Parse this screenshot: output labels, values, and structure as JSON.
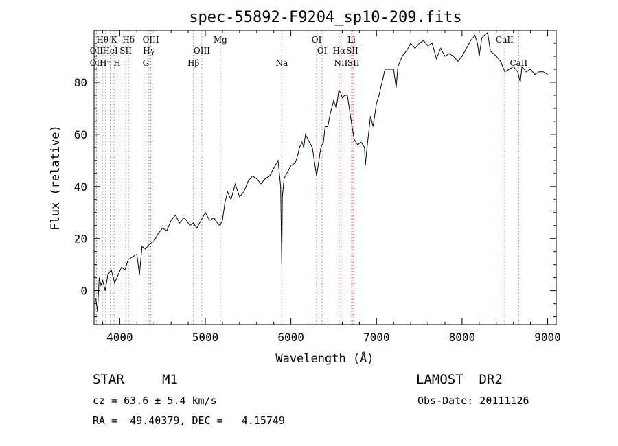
{
  "chart_data": {
    "type": "line",
    "title": "spec-55892-F9204_sp10-209.fits",
    "xlabel": "Wavelength (Å)",
    "ylabel": "Flux (relative)",
    "xlim": [
      3700,
      9100
    ],
    "ylim": [
      -13,
      100
    ],
    "xticks": [
      4000,
      5000,
      6000,
      7000,
      8000,
      9000
    ],
    "yticks": [
      0,
      20,
      40,
      60,
      80
    ],
    "grid": false,
    "line_color": "#000000",
    "marker_line_colors": {
      "emission": "#e05050",
      "absorption": "#808080"
    },
    "series": [
      {
        "x": [
          3720,
          3740,
          3760,
          3780,
          3800,
          3830,
          3860,
          3900,
          3940,
          3980,
          4020,
          4060,
          4100,
          4150,
          4200,
          4230,
          4260,
          4300,
          4350,
          4400,
          4450,
          4500,
          4550,
          4600,
          4650,
          4700,
          4750,
          4780,
          4820,
          4860,
          4900,
          4950,
          5000,
          5050,
          5100,
          5140,
          5170,
          5200,
          5230,
          5260,
          5300,
          5350,
          5400,
          5450,
          5500,
          5550,
          5600,
          5650,
          5700,
          5750,
          5800,
          5850,
          5880,
          5893,
          5900,
          5920,
          5950,
          6000,
          6050,
          6080,
          6100,
          6130,
          6150,
          6170,
          6200,
          6250,
          6300,
          6350,
          6380,
          6400,
          6430,
          6460,
          6500,
          6530,
          6560,
          6580,
          6600,
          6630,
          6660,
          6700,
          6740,
          6780,
          6820,
          6860,
          6870,
          6880,
          6900,
          6930,
          6960,
          7000,
          7030,
          7050,
          7100,
          7150,
          7200,
          7230,
          7250,
          7300,
          7350,
          7400,
          7450,
          7500,
          7550,
          7600,
          7650,
          7700,
          7750,
          7800,
          7850,
          7900,
          7950,
          8000,
          8050,
          8100,
          8150,
          8180,
          8200,
          8230,
          8260,
          8300,
          8330,
          8400,
          8450,
          8500,
          8550,
          8600,
          8650,
          8680,
          8700,
          8750,
          8800,
          8850,
          8900,
          8950,
          9000
        ],
        "y": [
          -3,
          -8,
          5,
          2,
          4,
          0,
          6,
          8,
          3,
          6,
          9,
          8,
          12,
          13,
          14,
          6,
          17,
          16,
          18,
          19,
          22,
          24,
          23,
          27,
          29,
          26,
          28,
          27,
          25,
          26,
          24,
          27,
          30,
          27,
          28,
          26,
          25,
          27,
          34,
          38,
          35,
          41,
          36,
          38,
          42,
          44,
          43,
          41,
          43,
          44,
          47,
          50,
          40,
          10,
          36,
          43,
          45,
          48,
          49,
          52,
          55,
          57,
          55,
          60,
          58,
          55,
          44,
          55,
          57,
          63,
          63,
          68,
          73,
          70,
          77,
          76,
          74,
          75,
          75,
          66,
          58,
          56,
          57,
          55,
          48,
          52,
          58,
          67,
          63,
          72,
          75,
          78,
          85,
          85,
          85,
          78,
          86,
          90,
          92,
          95,
          93,
          95,
          96,
          94,
          95,
          89,
          93,
          90,
          91,
          90,
          88,
          90,
          93,
          96,
          98,
          95,
          90,
          97,
          98,
          99,
          92,
          90,
          88,
          84,
          85,
          86,
          84,
          80,
          86,
          84,
          85,
          83,
          84,
          84,
          83
        ]
      }
    ],
    "line_markers": [
      {
        "label": "Hθ",
        "x": 3798,
        "row": 1,
        "type": "absorption"
      },
      {
        "label": "OII",
        "x": 3727,
        "row": 2,
        "type": "emission"
      },
      {
        "label": "OII",
        "x": 3727,
        "row": 3,
        "type": "emission"
      },
      {
        "label": "K",
        "x": 3934,
        "row": 1,
        "type": "absorption"
      },
      {
        "label": "HeI",
        "x": 3889,
        "row": 2,
        "type": "absorption"
      },
      {
        "label": "Hη",
        "x": 3835,
        "row": 3,
        "type": "absorption"
      },
      {
        "label": "Hδ",
        "x": 4102,
        "row": 1,
        "type": "absorption"
      },
      {
        "label": "SII",
        "x": 4070,
        "row": 2,
        "type": "emission"
      },
      {
        "label": "H",
        "x": 3969,
        "row": 3,
        "type": "absorption"
      },
      {
        "label": "OIII",
        "x": 4363,
        "row": 1,
        "type": "emission"
      },
      {
        "label": "Hγ",
        "x": 4341,
        "row": 2,
        "type": "absorption"
      },
      {
        "label": "G",
        "x": 4305,
        "row": 3,
        "type": "absorption"
      },
      {
        "label": "Mg",
        "x": 5175,
        "row": 1,
        "type": "absorption"
      },
      {
        "label": "OIII",
        "x": 4959,
        "row": 2,
        "type": "emission"
      },
      {
        "label": "Hβ",
        "x": 4861,
        "row": 3,
        "type": "absorption"
      },
      {
        "label": "Na",
        "x": 5893,
        "row": 3,
        "type": "absorption"
      },
      {
        "label": "OI",
        "x": 6300,
        "row": 1,
        "type": "emission"
      },
      {
        "label": "OI",
        "x": 6364,
        "row": 2,
        "type": "emission"
      },
      {
        "label": "Li",
        "x": 6708,
        "row": 1,
        "type": "absorption"
      },
      {
        "label": "Hα",
        "x": 6563,
        "row": 2,
        "type": "absorption"
      },
      {
        "label": "SII",
        "x": 6716,
        "row": 2,
        "type": "emission"
      },
      {
        "label": "NII",
        "x": 6584,
        "row": 3,
        "type": "emission"
      },
      {
        "label": "SII",
        "x": 6731,
        "row": 3,
        "type": "emission"
      },
      {
        "label": "CaII",
        "x": 8498,
        "row": 1,
        "type": "emission"
      },
      {
        "label": "CaII",
        "x": 8662,
        "row": 3,
        "type": "emission"
      }
    ]
  },
  "info": {
    "object_class": "STAR",
    "subclass": "M1",
    "survey": "LAMOST  DR2",
    "redshift": "cz = 63.6 ± 5.4 km/s",
    "obs_date": "Obs-Date: 20111126",
    "coords": "RA =  49.40379, DEC =   4.15749"
  }
}
